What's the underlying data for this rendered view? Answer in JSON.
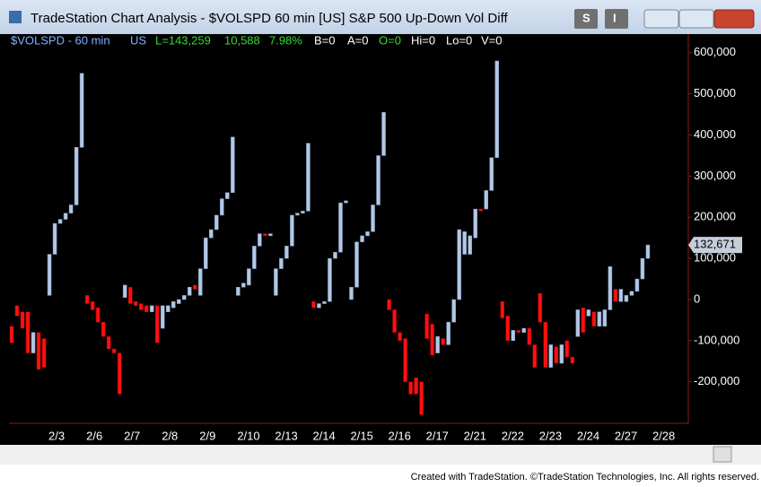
{
  "window": {
    "title": "TradeStation Chart Analysis - $VOLSPD 60 min [US] S&P 500 Up-Down Vol Diff",
    "buttons": [
      "S",
      "I"
    ]
  },
  "status": [
    "$VOLSPD - 60 min",
    "US",
    "L=143,259",
    "10,588",
    "7.98%",
    "B=0",
    "A=0",
    "O=0",
    "Hi=0",
    "Lo=0",
    "V=0"
  ],
  "footer": "Created with TradeStation. ©TradeStation Technologies, Inc. All rights reserved.",
  "chart_data": {
    "type": "candlestick",
    "categories": [
      null,
      null,
      null,
      null,
      null,
      null,
      null,
      "2/3",
      null,
      null,
      null,
      null,
      null,
      null,
      "2/6",
      null,
      null,
      null,
      null,
      null,
      null,
      "2/7",
      null,
      null,
      null,
      null,
      null,
      null,
      "2/8",
      null,
      null,
      null,
      null,
      null,
      null,
      "2/9",
      null,
      null,
      null,
      null,
      null,
      null,
      "2/10",
      null,
      null,
      null,
      null,
      null,
      null,
      "2/13",
      null,
      null,
      null,
      null,
      null,
      null,
      "2/14",
      null,
      null,
      null,
      null,
      null,
      null,
      "2/15",
      null,
      null,
      null,
      null,
      null,
      null,
      "2/16",
      null,
      null,
      null,
      null,
      null,
      null,
      "2/17",
      null,
      null,
      null,
      null,
      null,
      null,
      "2/21",
      null,
      null,
      null,
      null,
      null,
      null,
      "2/22",
      null,
      null,
      null,
      null,
      null,
      null,
      "2/23",
      null,
      null,
      null,
      null,
      null,
      null,
      "2/24",
      null,
      null,
      null,
      null,
      null,
      null,
      "2/27",
      null,
      null,
      null,
      null,
      null,
      null,
      "2/28",
      null,
      null,
      null,
      null,
      null,
      null
    ],
    "open": [
      -65000,
      -15000,
      -30000,
      -30000,
      -130000,
      -80000,
      -95000,
      10000,
      110000,
      185000,
      195000,
      210000,
      230000,
      370000,
      10000,
      -5000,
      -20000,
      -55000,
      -90000,
      -120000,
      -130000,
      5000,
      30000,
      -5000,
      -10000,
      -15000,
      -30000,
      -15000,
      -70000,
      -30000,
      -20000,
      -10000,
      0,
      10000,
      35000,
      10000,
      75000,
      150000,
      170000,
      205000,
      245000,
      260000,
      10000,
      30000,
      35000,
      75000,
      130000,
      160000,
      155000,
      10000,
      75000,
      100000,
      130000,
      205000,
      210000,
      215000,
      -5000,
      -20000,
      -10000,
      -5000,
      100000,
      115000,
      235000,
      0,
      30000,
      140000,
      155000,
      165000,
      230000,
      350000,
      0,
      -25000,
      -80000,
      -95000,
      -200000,
      -190000,
      -200000,
      -35000,
      -60000,
      -130000,
      -95000,
      -110000,
      -55000,
      0,
      110000,
      110000,
      150000,
      220000,
      220000,
      265000,
      345000,
      -5000,
      -40000,
      -100000,
      -75000,
      -80000,
      -70000,
      -110000,
      15000,
      -55000,
      -165000,
      -115000,
      -155000,
      -100000,
      -140000,
      -90000,
      -20000,
      -40000,
      -30000,
      -65000,
      -65000,
      -25000,
      25000,
      -5000,
      -5000,
      10000,
      20000,
      50000,
      100000,
      null,
      null,
      null,
      null,
      null,
      null,
      null
    ],
    "close": [
      -105000,
      -40000,
      -70000,
      -130000,
      -80000,
      -170000,
      -165000,
      110000,
      185000,
      195000,
      210000,
      230000,
      370000,
      550000,
      -10000,
      -25000,
      -55000,
      -90000,
      -120000,
      -130000,
      -230000,
      35000,
      -10000,
      -15000,
      -25000,
      -30000,
      -15000,
      -105000,
      -15000,
      -15000,
      -5000,
      0,
      10000,
      30000,
      25000,
      75000,
      150000,
      170000,
      205000,
      245000,
      260000,
      395000,
      30000,
      40000,
      75000,
      130000,
      160000,
      155000,
      160000,
      75000,
      100000,
      130000,
      205000,
      210000,
      215000,
      380000,
      -20000,
      -10000,
      -5000,
      100000,
      115000,
      235000,
      240000,
      30000,
      140000,
      155000,
      165000,
      230000,
      350000,
      455000,
      -25000,
      -80000,
      -100000,
      -200000,
      -230000,
      -230000,
      -280000,
      -95000,
      -135000,
      -90000,
      -110000,
      -55000,
      0,
      170000,
      165000,
      155000,
      220000,
      215000,
      265000,
      345000,
      580000,
      -45000,
      -100000,
      -75000,
      -80000,
      -70000,
      -110000,
      -165000,
      -55000,
      -165000,
      -110000,
      -155000,
      -110000,
      -140000,
      -155000,
      -25000,
      -80000,
      -25000,
      -65000,
      -30000,
      -25000,
      80000,
      -5000,
      25000,
      10000,
      20000,
      50000,
      100000,
      132671,
      null,
      null,
      null,
      null,
      null,
      null,
      null
    ],
    "up_color": "#b4c8e4",
    "down_color": "#ff1010",
    "ylim": [
      -301000,
      641000
    ],
    "yticks": [
      {
        "value": -200000,
        "label": "-200,000"
      },
      {
        "value": -100000,
        "label": "-100,000"
      },
      0,
      {
        "value": 100000,
        "label": "100,000"
      },
      {
        "value": 200000,
        "label": "200,000"
      },
      {
        "value": 300000,
        "label": "300,000"
      },
      {
        "value": 400000,
        "label": "400,000"
      },
      {
        "value": 500000,
        "label": "500,000"
      },
      {
        "value": 600000,
        "label": "600,000"
      }
    ],
    "last_label": {
      "value": 132671,
      "label": "132,671"
    }
  }
}
